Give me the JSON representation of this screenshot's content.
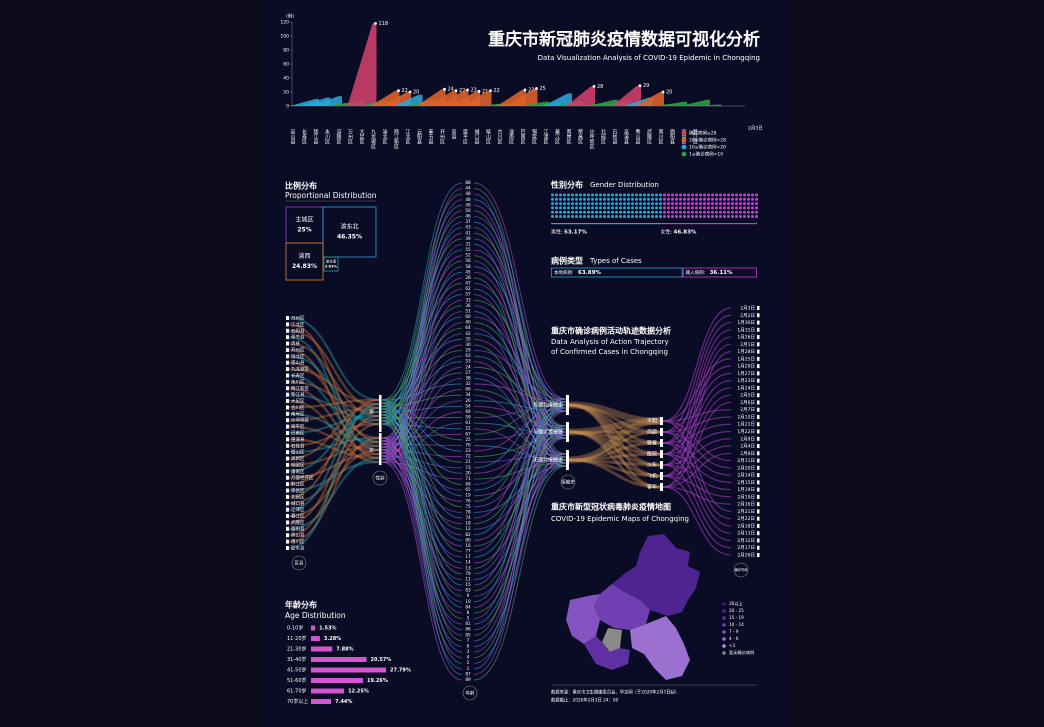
{
  "header": {
    "title": "重庆市新冠肺炎疫情数据可视化分析",
    "subtitle": "Data Visualization Analysis of COVID-19 Epidemic in Chongqing"
  },
  "chart_data": {
    "type": "bar",
    "y_label": "(例)",
    "date": "2月3日",
    "categories": [
      "巫山县",
      "长寿区",
      "垫江县",
      "永川区",
      "涪陵区",
      "万州区",
      "大足区",
      "九龙坡区",
      "渝北区",
      "两江新区",
      "江北区",
      "云阳县",
      "奉节县",
      "开州区",
      "忠县",
      "梁平区",
      "城口县",
      "璧山区",
      "合川区",
      "潼南区",
      "巴南区",
      "铜梁区",
      "江津区",
      "綦江区",
      "南岸区",
      "荣昌区",
      "沙坪坝区",
      "北碚区",
      "石柱县",
      "巫溪县",
      "秀山县",
      "武隆区",
      "南川区",
      "酉阳县",
      "渝中区",
      "黔江区"
    ],
    "values": [
      10,
      12,
      14,
      5,
      6,
      118,
      8,
      22,
      20,
      16,
      8,
      24,
      22,
      23,
      21,
      22,
      3,
      4,
      23,
      25,
      6,
      5,
      18,
      7,
      28,
      4,
      9,
      8,
      29,
      12,
      20,
      3,
      6,
      2,
      9,
      2
    ],
    "ylim": [
      0,
      120
    ],
    "yticks": [
      0,
      20,
      40,
      60,
      80,
      100,
      120
    ],
    "legend": [
      {
        "label": "确诊病例≥28",
        "color": "#d0406a",
        "min": 28
      },
      {
        "label": "20≤确诊病例<28",
        "color": "#e0622a",
        "min": 20
      },
      {
        "label": "10≤确诊病例<20",
        "color": "#2aa6d8",
        "min": 10
      },
      {
        "label": "1≤确诊病例<10",
        "color": "#2aa040",
        "min": 1
      }
    ]
  },
  "proportion": {
    "title": "比例分布",
    "subtitle": "Proportional Distribution",
    "regions": [
      {
        "name": "主城区",
        "value": 25,
        "value_label": "25%",
        "color": "#a040c8"
      },
      {
        "name": "渝东北",
        "value": 46.35,
        "value_label": "46.35%",
        "color": "#2aa6d8"
      },
      {
        "name": "渝西",
        "value": 24.83,
        "value_label": "24.83%",
        "color": "#e0822a"
      },
      {
        "name": "渝东南",
        "value": 3.83,
        "value_label": "3.83%",
        "color": "#2a9a9a"
      }
    ]
  },
  "gender": {
    "title": "性别分布",
    "subtitle": "Gender Distribution",
    "items": [
      {
        "name": "男性:",
        "value": 53.17,
        "value_label": "53.17%",
        "color": "#2aa6d8"
      },
      {
        "name": "女性:",
        "value": 46.83,
        "value_label": "46.83%",
        "color": "#c040d8"
      }
    ]
  },
  "case_types": {
    "title": "病例类型",
    "subtitle": "Types of  Cases",
    "items": [
      {
        "name": "本地病例:",
        "value": 63.89,
        "value_label": "63.89%",
        "color": "#2aa6d8"
      },
      {
        "name": "输入病例:",
        "value": 36.11,
        "value_label": "36.11%",
        "color": "#c040d8"
      }
    ]
  },
  "trajectory": {
    "title": "重庆市确诊病例活动轨迹数据分析",
    "subtitle_lines": [
      "Data Analysis of Action Trajectory",
      "of Confirmed Cases in Chongqing"
    ],
    "node_labels": {
      "district": "区县",
      "sex": "性别",
      "age": "年龄",
      "contact": "接触史",
      "date": "确诊时间"
    },
    "districts": [
      "万州区",
      "江北区",
      "云阳县",
      "奉节县",
      "忠县",
      "开州区",
      "渝北区",
      "巫山县",
      "九龙坡区",
      "长寿区",
      "永川区",
      "两江新区",
      "垫江县",
      "大足区",
      "合川区",
      "南岸区",
      "沙坪坝区",
      "梁平区",
      "巴南区",
      "巫溪县",
      "石柱县",
      "璧山区",
      "高新区",
      "铜梁区",
      "潼南区",
      "万盛经开区",
      "黔江区",
      "荣昌区",
      "北碚区",
      "城口县",
      "江津区",
      "綦江区",
      "武隆区",
      "酉阳县",
      "秀山县",
      "南川区",
      "彭水县"
    ],
    "sexes": [
      "男",
      "女"
    ],
    "ages": [
      88,
      44,
      48,
      48,
      49,
      50,
      46,
      37,
      43,
      41,
      39,
      31,
      55,
      52,
      56,
      58,
      45,
      28,
      47,
      62,
      57,
      33,
      36,
      51,
      60,
      40,
      64,
      42,
      35,
      30,
      29,
      63,
      53,
      24,
      27,
      38,
      32,
      66,
      34,
      26,
      54,
      69,
      59,
      61,
      22,
      67,
      25,
      70,
      23,
      72,
      21,
      73,
      20,
      71,
      68,
      65,
      19,
      76,
      75,
      78,
      74,
      18,
      12,
      82,
      80,
      16,
      77,
      17,
      14,
      13,
      79,
      11,
      15,
      83,
      9,
      10,
      84,
      8,
      5,
      81,
      86,
      85,
      7,
      6,
      3,
      4,
      2,
      1,
      87,
      89
    ],
    "contacts": [
      "有湖北接触史",
      "与确诊者接触",
      "无湖北接触史"
    ],
    "places": [
      "不明",
      "商超",
      "聚餐",
      "医院",
      "火车",
      "飞机",
      "客车"
    ],
    "dates": [
      "2月3日",
      "2月2日",
      "1月30日",
      "1月31日",
      "1月26日",
      "2月1日",
      "1月28日",
      "1月25日",
      "1月29日",
      "1月27日",
      "1月23日",
      "1月24日",
      "2月5日",
      "2月6日",
      "2月7日",
      "2月10日",
      "1月21日",
      "1月22日",
      "2月9日",
      "2月4日",
      "2月8日",
      "2月11日",
      "2月20日",
      "2月14日",
      "2月15日",
      "1月19日",
      "2月19日",
      "2月16日",
      "2月21日",
      "2月22日",
      "2月18日",
      "2月13日",
      "2月12日",
      "2月17日",
      "2月26日"
    ]
  },
  "age": {
    "title": "年龄分布",
    "subtitle": "Age Distribution",
    "color": "#d455d0",
    "categories": [
      "0-10岁",
      "11-20岁",
      "21-30岁",
      "31-40岁",
      "41-50岁",
      "51-60岁",
      "61-70岁",
      "70岁以上"
    ],
    "values": [
      1.53,
      3.28,
      7.88,
      20.57,
      27.79,
      19.26,
      12.25,
      7.44
    ],
    "value_labels": [
      "1.53%",
      "3.28%",
      "7.88%",
      "20.57%",
      "27.79%",
      "19.26%",
      "12.25%",
      "7.44%"
    ]
  },
  "map": {
    "title": "重庆市新型冠状病毒肺炎疫情地图",
    "subtitle": "COVID-19 Epidemic Maps of Chongqing",
    "legend": [
      {
        "label": "26以上",
        "color": "#3e1a7a"
      },
      {
        "label": "20 - 25",
        "color": "#4e2490"
      },
      {
        "label": "15 - 19",
        "color": "#5e30a2"
      },
      {
        "label": "10 - 14",
        "color": "#7040b2"
      },
      {
        "label": "7 - 9",
        "color": "#8454c0"
      },
      {
        "label": "4 - 6",
        "color": "#9c70cf"
      },
      {
        "label": "<3",
        "color": "#b890dd"
      },
      {
        "label": "暂无确诊病例",
        "color": "#8a8a8a"
      }
    ]
  },
  "footer": {
    "source": "数据来源：重庆市卫生健康委员会、华龙网（于2020年2月7日起）",
    "cutoff": "数据截止：2020年2月3日 24：00"
  }
}
